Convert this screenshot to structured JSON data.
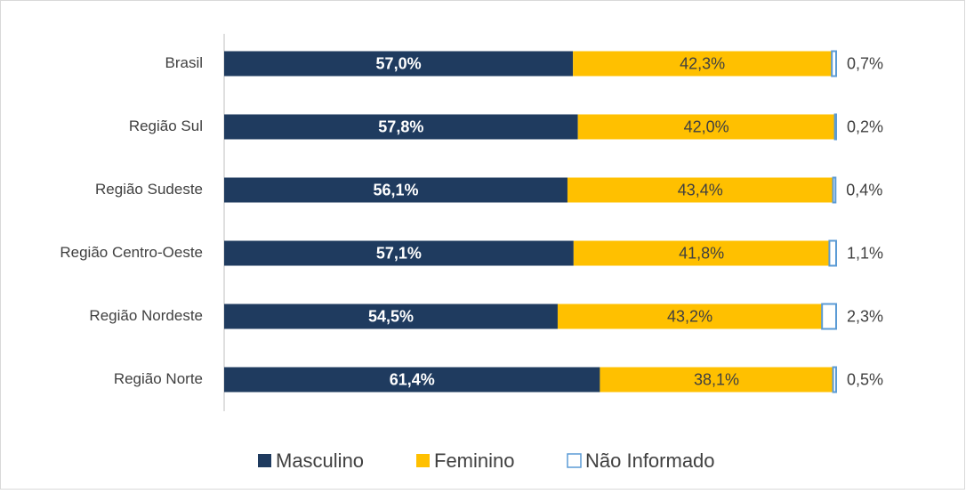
{
  "chart_data": {
    "type": "stacked_barh",
    "categories": [
      "Brasil",
      "Região Sul",
      "Região Sudeste",
      "Região Centro-Oeste",
      "Região Nordeste",
      "Região Norte"
    ],
    "xlim": [
      0,
      100
    ],
    "series": [
      {
        "name": "Masculino",
        "color": "#1f3b5f",
        "values": [
          57.0,
          57.8,
          56.1,
          57.1,
          54.5,
          61.4
        ],
        "value_labels": [
          "57,0%",
          "57,8%",
          "56,1%",
          "57,1%",
          "54,5%",
          "61,4%"
        ]
      },
      {
        "name": "Feminino",
        "color": "#ffc000",
        "values": [
          42.3,
          42.0,
          43.4,
          41.8,
          43.2,
          38.1
        ],
        "value_labels": [
          "42,3%",
          "42,0%",
          "43,4%",
          "41,8%",
          "43,2%",
          "38,1%"
        ]
      },
      {
        "name": "Não Informado",
        "color": "#ffffff",
        "edgecolor": "#5b9bd5",
        "values": [
          0.7,
          0.2,
          0.4,
          1.1,
          2.3,
          0.5
        ],
        "value_labels": [
          "0,7%",
          "0,2%",
          "0,4%",
          "1,1%",
          "2,3%",
          "0,5%"
        ]
      }
    ]
  }
}
